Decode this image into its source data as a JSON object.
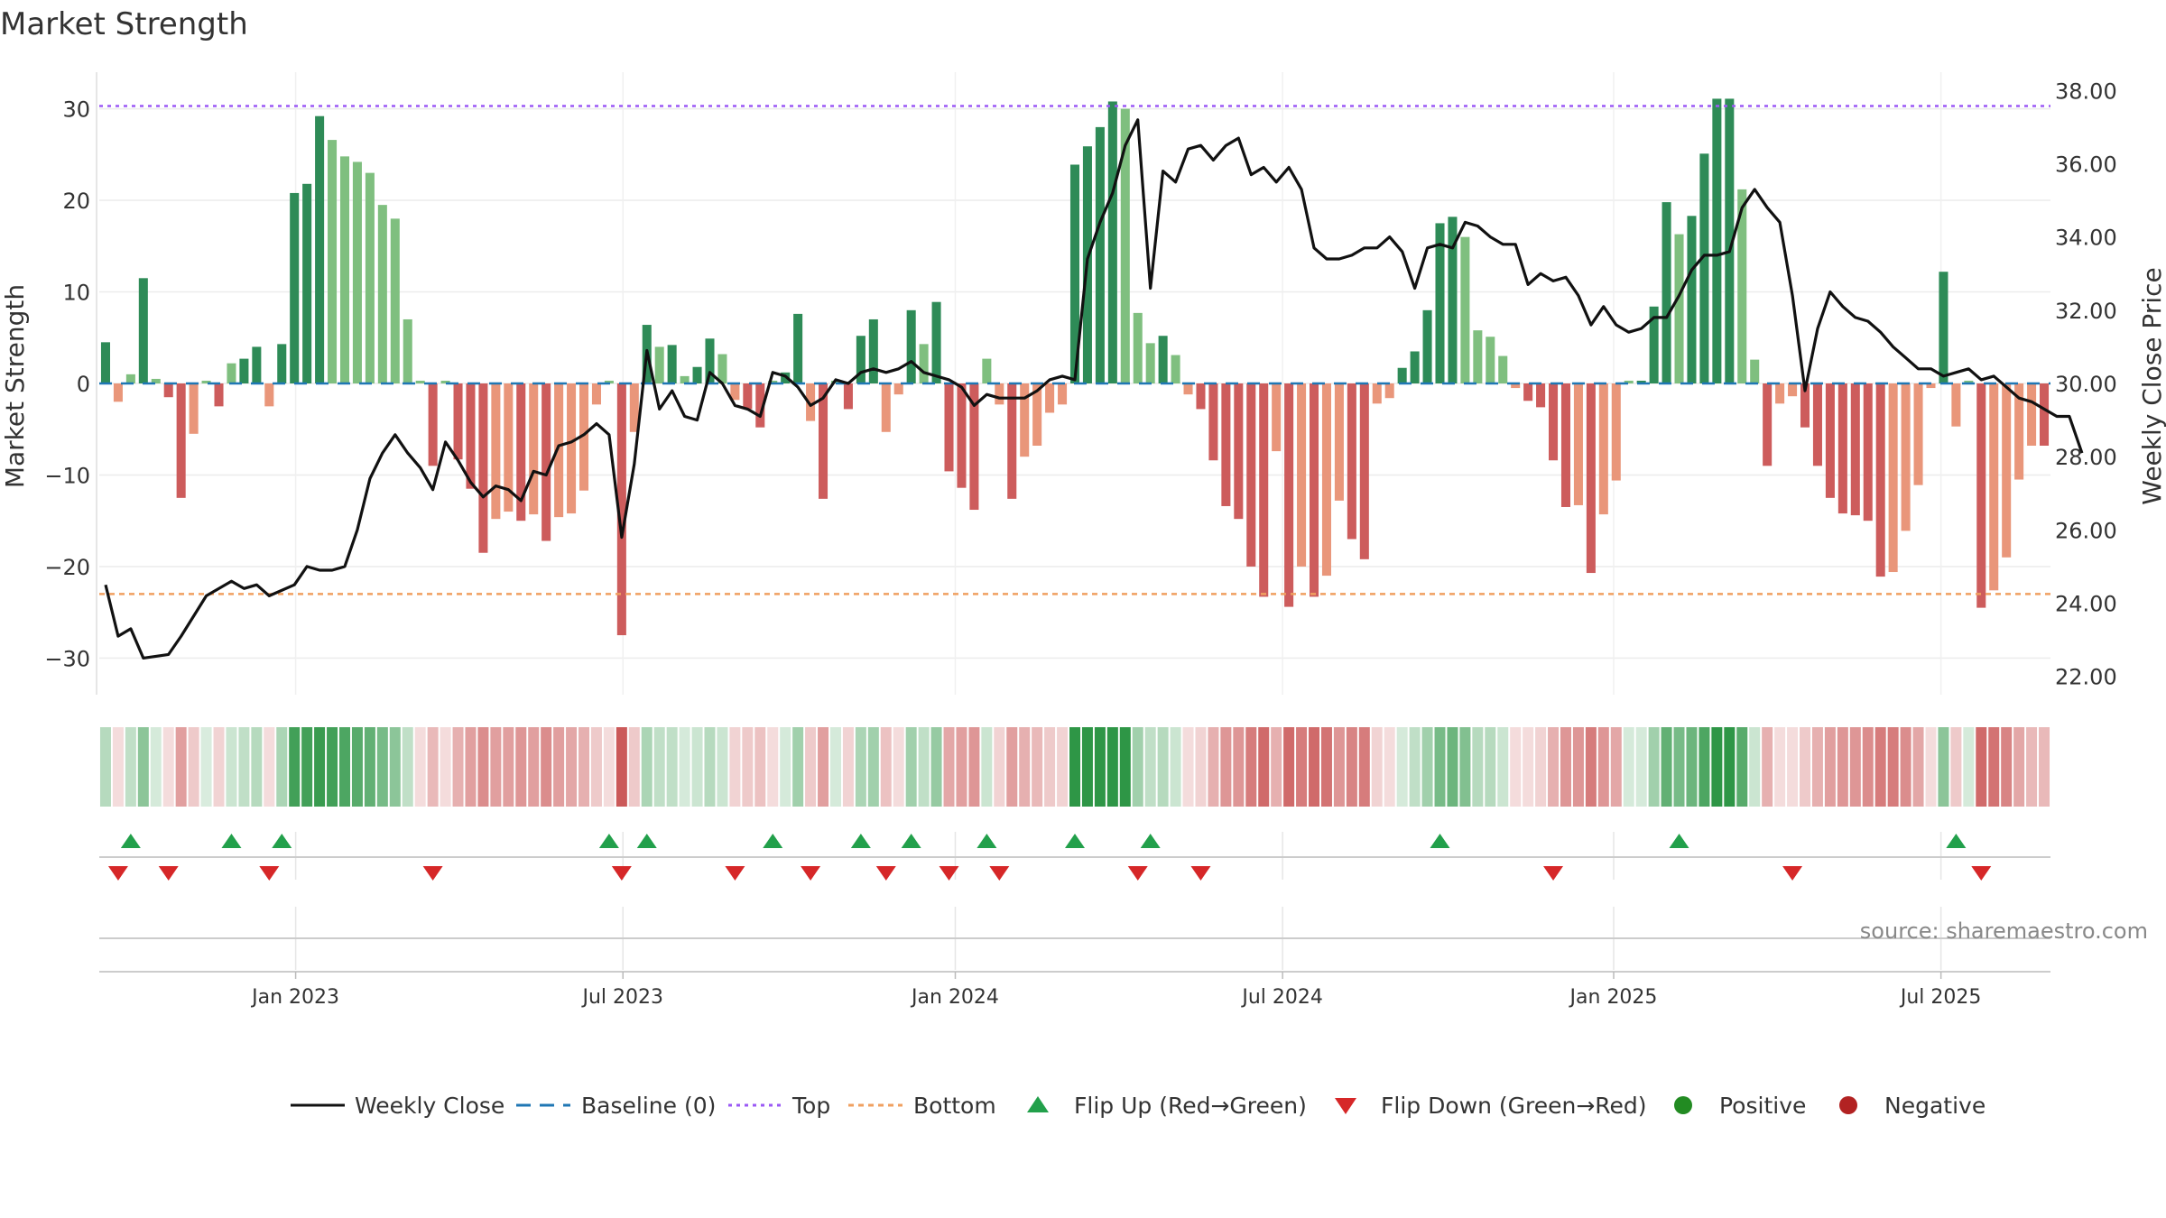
{
  "chart_data": {
    "type": "bar",
    "title": "Market Strength",
    "ylabel_left": "Market Strength",
    "ylabel_right": "Weekly Close Price",
    "ylim_left": [
      -34,
      34
    ],
    "ylim_right": [
      21.5,
      38.5
    ],
    "left_ticks": [
      "30",
      "20",
      "10",
      "0",
      "−10",
      "−20",
      "−30"
    ],
    "left_tick_values": [
      30,
      20,
      10,
      0,
      -10,
      -20,
      -30
    ],
    "right_ticks": [
      "38.00",
      "36.00",
      "34.00",
      "32.00",
      "30.00",
      "28.00",
      "26.00",
      "24.00",
      "22.00"
    ],
    "right_tick_values": [
      38,
      36,
      34,
      32,
      30,
      28,
      26,
      24,
      22
    ],
    "x_ticks": [
      "Jan 2023",
      "Jul 2023",
      "Jan 2024",
      "Jul 2024",
      "Jan 2025",
      "Jul 2025"
    ],
    "x_tick_positions": [
      15.1,
      41.1,
      67.5,
      93.5,
      119.8,
      145.8
    ],
    "top_line": 30.3,
    "bottom_line": -23.0,
    "strength": [
      4.5,
      -2,
      1,
      11.5,
      0.5,
      -1.5,
      -12.5,
      -5.5,
      0.3,
      -2.5,
      2.2,
      2.7,
      4,
      -2.5,
      4.3,
      20.8,
      21.8,
      29.2,
      26.6,
      24.8,
      24.2,
      23,
      19.5,
      18,
      7,
      0.3,
      -9,
      0.3,
      -8.3,
      -11.5,
      -18.5,
      -14.8,
      -14,
      -15,
      -14.3,
      -17.2,
      -14.6,
      -14.2,
      -11.7,
      -2.3,
      0.3,
      -27.5,
      -5.3,
      6.4,
      4,
      4.2,
      0.8,
      1.8,
      4.9,
      3.2,
      -1.8,
      -2.8,
      -4.8,
      0.3,
      1.2,
      7.6,
      -4.1,
      -12.6,
      0.3,
      -2.8,
      5.2,
      7,
      -5.3,
      -1.2,
      8,
      4.3,
      8.9,
      -9.6,
      -11.4,
      -13.8,
      2.7,
      -2.3,
      -12.6,
      -8,
      -6.8,
      -3.2,
      -2.3,
      23.9,
      25.9,
      28,
      30.8,
      30,
      7.7,
      4.4,
      5.2,
      3.1,
      -1.2,
      -2.8,
      -8.4,
      -13.4,
      -14.8,
      -20,
      -23.3,
      -7.4,
      -24.4,
      -20,
      -23.3,
      -21,
      -12.8,
      -17,
      -19.2,
      -2.2,
      -1.6,
      1.7,
      3.5,
      8,
      17.5,
      18.2,
      16,
      5.8,
      5.1,
      3,
      -0.5,
      -1.9,
      -2.6,
      -8.4,
      -13.5,
      -13.3,
      -20.7,
      -14.3,
      -10.6,
      0.3,
      0.3,
      8.4,
      19.8,
      16.3,
      18.3,
      25.1,
      31.1,
      31.1,
      21.2,
      2.6,
      -9,
      -2.2,
      -1.4,
      -4.8,
      -9,
      -12.5,
      -14.2,
      -14.4,
      -15,
      -21.1,
      -20.6,
      -16.1,
      -11.1,
      -0.5,
      12.2,
      -4.7,
      0.3,
      -24.5,
      -22.6,
      -19,
      -10.5,
      -6.8,
      -6.8
    ],
    "weekly_close": [
      [
        0,
        24.5
      ],
      [
        1,
        23.1
      ],
      [
        2,
        23.3
      ],
      [
        3,
        22.5
      ],
      [
        5,
        22.6
      ],
      [
        6,
        23.1
      ],
      [
        8,
        24.2
      ],
      [
        10,
        24.6
      ],
      [
        11,
        24.4
      ],
      [
        12,
        24.5
      ],
      [
        13,
        24.2
      ],
      [
        15,
        24.5
      ],
      [
        16,
        25
      ],
      [
        17,
        24.9
      ],
      [
        18,
        24.9
      ],
      [
        19,
        25
      ],
      [
        20,
        26
      ],
      [
        21,
        27.4
      ],
      [
        22,
        28.1
      ],
      [
        23,
        28.6
      ],
      [
        24,
        28.1
      ],
      [
        25,
        27.7
      ],
      [
        26,
        27.1
      ],
      [
        27,
        28.4
      ],
      [
        28,
        27.9
      ],
      [
        29,
        27.3
      ],
      [
        30,
        26.9
      ],
      [
        31,
        27.2
      ],
      [
        32,
        27.1
      ],
      [
        33,
        26.8
      ],
      [
        34,
        27.6
      ],
      [
        35,
        27.5
      ],
      [
        36,
        28.3
      ],
      [
        37,
        28.4
      ],
      [
        38,
        28.6
      ],
      [
        39,
        28.9
      ],
      [
        40,
        28.6
      ],
      [
        41,
        25.8
      ],
      [
        42,
        27.8
      ],
      [
        43,
        30.9
      ],
      [
        44,
        29.3
      ],
      [
        45,
        29.8
      ],
      [
        46,
        29.1
      ],
      [
        47,
        29
      ],
      [
        48,
        30.3
      ],
      [
        49,
        30
      ],
      [
        50,
        29.4
      ],
      [
        51,
        29.3
      ],
      [
        52,
        29.1
      ],
      [
        53,
        30.3
      ],
      [
        54,
        30.2
      ],
      [
        55,
        29.9
      ],
      [
        56,
        29.4
      ],
      [
        57,
        29.6
      ],
      [
        58,
        30.1
      ],
      [
        59,
        30
      ],
      [
        60,
        30.3
      ],
      [
        61,
        30.4
      ],
      [
        62,
        30.3
      ],
      [
        63,
        30.4
      ],
      [
        64,
        30.6
      ],
      [
        65,
        30.3
      ],
      [
        66,
        30.2
      ],
      [
        67,
        30.1
      ],
      [
        68,
        29.9
      ],
      [
        69,
        29.4
      ],
      [
        70,
        29.7
      ],
      [
        71,
        29.6
      ],
      [
        72,
        29.6
      ],
      [
        73,
        29.6
      ],
      [
        74,
        29.8
      ],
      [
        75,
        30.1
      ],
      [
        76,
        30.2
      ],
      [
        77,
        30.1
      ],
      [
        78,
        33.4
      ],
      [
        79,
        34.4
      ],
      [
        80,
        35.2
      ],
      [
        81,
        36.5
      ],
      [
        82,
        37.2
      ],
      [
        83,
        32.6
      ],
      [
        84,
        35.8
      ],
      [
        85,
        35.5
      ],
      [
        86,
        36.4
      ],
      [
        87,
        36.5
      ],
      [
        88,
        36.1
      ],
      [
        89,
        36.5
      ],
      [
        90,
        36.7
      ],
      [
        91,
        35.7
      ],
      [
        92,
        35.9
      ],
      [
        93,
        35.5
      ],
      [
        94,
        35.9
      ],
      [
        95,
        35.3
      ],
      [
        96,
        33.7
      ],
      [
        97,
        33.4
      ],
      [
        98,
        33.4
      ],
      [
        99,
        33.5
      ],
      [
        100,
        33.7
      ],
      [
        101,
        33.7
      ],
      [
        102,
        34
      ],
      [
        103,
        33.6
      ],
      [
        104,
        32.6
      ],
      [
        105,
        33.7
      ],
      [
        106,
        33.8
      ],
      [
        107,
        33.7
      ],
      [
        108,
        34.4
      ],
      [
        109,
        34.3
      ],
      [
        110,
        34
      ],
      [
        111,
        33.8
      ],
      [
        112,
        33.8
      ],
      [
        113,
        32.7
      ],
      [
        114,
        33
      ],
      [
        115,
        32.8
      ],
      [
        116,
        32.9
      ],
      [
        117,
        32.4
      ],
      [
        118,
        31.6
      ],
      [
        119,
        32.1
      ],
      [
        120,
        31.6
      ],
      [
        121,
        31.4
      ],
      [
        122,
        31.5
      ],
      [
        123,
        31.8
      ],
      [
        124,
        31.8
      ],
      [
        125,
        32.4
      ],
      [
        126,
        33.1
      ],
      [
        127,
        33.5
      ],
      [
        128,
        33.5
      ],
      [
        129,
        33.6
      ],
      [
        130,
        34.8
      ],
      [
        131,
        35.3
      ],
      [
        132,
        34.8
      ],
      [
        133,
        34.4
      ],
      [
        134,
        32.4
      ],
      [
        135,
        29.8
      ],
      [
        136,
        31.5
      ],
      [
        137,
        32.5
      ],
      [
        138,
        32.1
      ],
      [
        139,
        31.8
      ],
      [
        140,
        31.7
      ],
      [
        141,
        31.4
      ],
      [
        142,
        31
      ],
      [
        143,
        30.7
      ],
      [
        144,
        30.4
      ],
      [
        145,
        30.4
      ],
      [
        146,
        30.2
      ],
      [
        147,
        30.3
      ],
      [
        148,
        30.4
      ],
      [
        149,
        30.1
      ],
      [
        150,
        30.2
      ],
      [
        151,
        29.9
      ],
      [
        152,
        29.6
      ],
      [
        153,
        29.5
      ],
      [
        154,
        29.3
      ],
      [
        155,
        29.1
      ],
      [
        156,
        29.1
      ],
      [
        157,
        28.1
      ]
    ],
    "heat": [
      0.35,
      -0.2,
      0.3,
      0.55,
      0.2,
      -0.2,
      -0.55,
      -0.3,
      0.15,
      -0.25,
      0.25,
      0.3,
      0.35,
      -0.2,
      0.4,
      0.9,
      0.9,
      0.95,
      0.9,
      0.85,
      0.8,
      0.75,
      0.65,
      0.55,
      0.3,
      -0.2,
      -0.4,
      -0.2,
      -0.45,
      -0.55,
      -0.65,
      -0.55,
      -0.55,
      -0.6,
      -0.55,
      -0.65,
      -0.55,
      -0.5,
      -0.45,
      -0.3,
      -0.2,
      -0.95,
      -0.3,
      0.4,
      0.3,
      0.3,
      0.2,
      0.25,
      0.35,
      0.25,
      -0.25,
      -0.3,
      -0.35,
      -0.2,
      0.2,
      0.45,
      -0.3,
      -0.55,
      0.2,
      -0.25,
      0.4,
      0.45,
      -0.35,
      -0.2,
      0.45,
      0.3,
      0.5,
      -0.5,
      -0.55,
      -0.6,
      0.25,
      -0.25,
      -0.55,
      -0.45,
      -0.4,
      -0.3,
      -0.25,
      1,
      1,
      1,
      1,
      1,
      0.45,
      0.3,
      0.35,
      0.25,
      -0.2,
      -0.25,
      -0.45,
      -0.6,
      -0.6,
      -0.75,
      -0.85,
      -0.45,
      -0.85,
      -0.75,
      -0.85,
      -0.8,
      -0.6,
      -0.7,
      -0.75,
      -0.25,
      -0.2,
      0.2,
      0.3,
      0.45,
      0.65,
      0.7,
      0.6,
      0.35,
      0.35,
      0.25,
      -0.2,
      -0.2,
      -0.25,
      -0.45,
      -0.6,
      -0.6,
      -0.75,
      -0.6,
      -0.5,
      0.2,
      0.2,
      0.45,
      0.75,
      0.65,
      0.7,
      0.85,
      1,
      1,
      0.8,
      0.25,
      -0.45,
      -0.2,
      -0.2,
      -0.3,
      -0.45,
      -0.55,
      -0.6,
      -0.6,
      -0.65,
      -0.75,
      -0.75,
      -0.65,
      -0.5,
      -0.2,
      0.55,
      -0.3,
      0.2,
      -0.85,
      -0.8,
      -0.7,
      -0.5,
      -0.4,
      -0.4
    ],
    "flip_up": [
      2,
      10,
      14,
      40,
      43,
      53,
      60,
      64,
      70,
      77,
      83,
      106,
      125,
      147
    ],
    "flip_down": [
      1,
      5,
      13,
      26,
      41,
      50,
      56,
      62,
      67,
      71,
      82,
      87,
      115,
      134,
      149
    ],
    "legend": [
      "Weekly Close",
      "Baseline (0)",
      "Top",
      "Bottom",
      "Flip Up (Red→Green)",
      "Flip Down (Green→Red)",
      "Positive",
      "Negative"
    ],
    "source": "source: sharemaestro.com"
  },
  "colors": {
    "bar_pos_dark": "#2e8b57",
    "bar_pos_light": "#7fbf7f",
    "bar_neg_dark": "#cd5c5c",
    "bar_neg_light": "#e9967a",
    "close_line": "#111111",
    "baseline": "#1f77b4",
    "top": "#9b59f5",
    "bottom": "#f0a060",
    "flip_up": "#22a04b",
    "flip_down": "#d62728",
    "positive_dot": "#228b22",
    "negative_dot": "#b22222"
  }
}
